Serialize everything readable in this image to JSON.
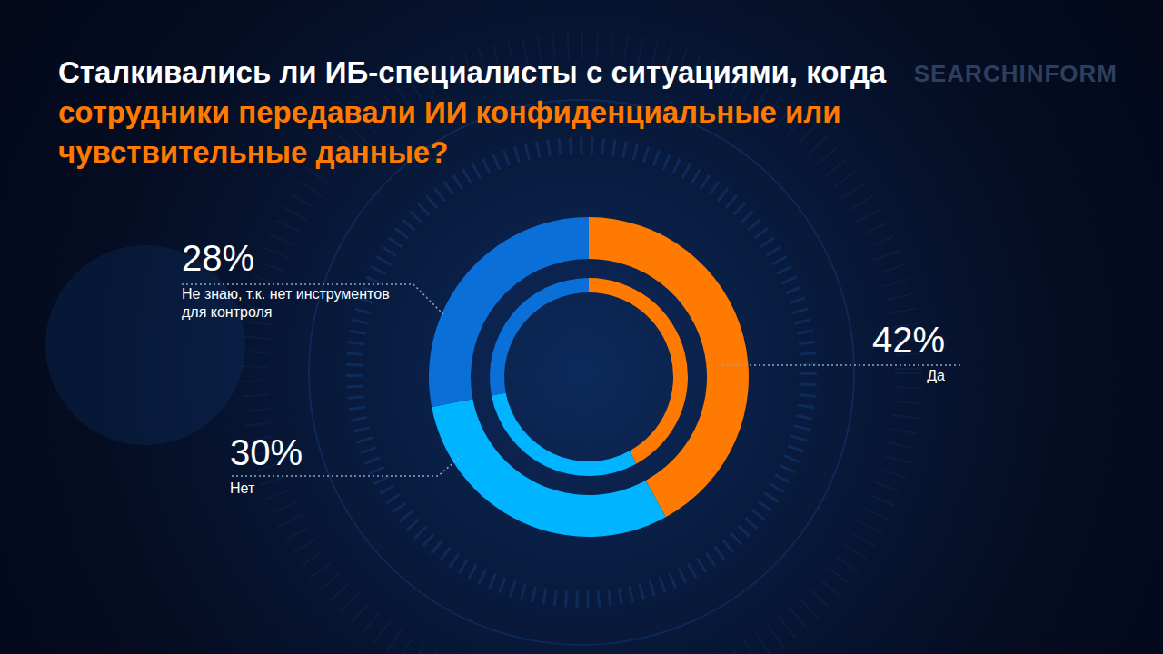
{
  "chart_data": {
    "type": "pie",
    "title": [
      "Сталкивались ли ИБ-специалисты с ситуациями, когда",
      "сотрудники передавали ИИ конфиденциальные или чувствительные данные?"
    ],
    "annotations": [
      "SEARCHINFORM"
    ],
    "categories": [
      "Да",
      "Нет",
      "Не знаю, т.к. нет инструментов для контроля"
    ],
    "values": [
      42,
      30,
      28
    ],
    "value_labels": [
      "42%",
      "30%",
      "28%"
    ],
    "colors": [
      "#ff7a00",
      "#00b4ff",
      "#0b6fd8"
    ]
  }
}
